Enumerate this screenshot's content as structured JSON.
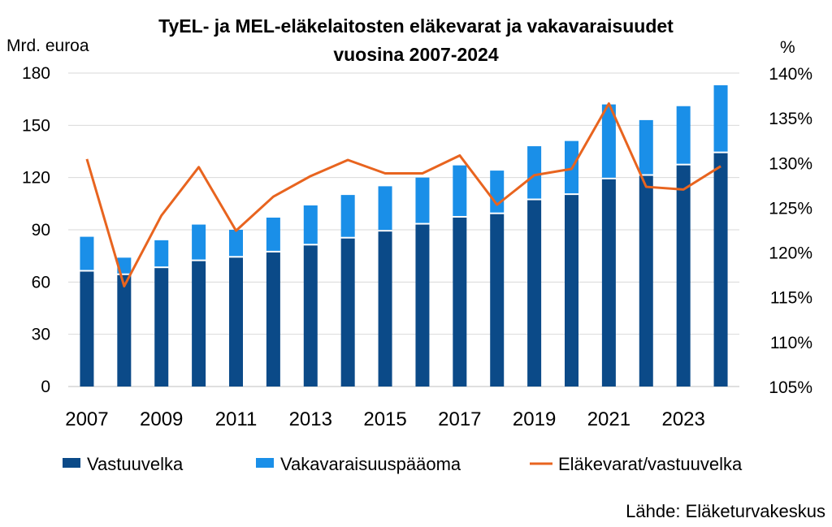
{
  "chart_data": {
    "type": "bar",
    "stacked": true,
    "title_line1": "TyEL- ja MEL-eläkelaitosten eläkevarat ja vakavaraisuudet",
    "title_line2": "vuosina 2007-2024",
    "ylabel_left": "Mrd. euroa",
    "ylabel_right": "%",
    "ylim_left": [
      0,
      180
    ],
    "ylim_right": [
      105,
      140
    ],
    "yticks_left": [
      "0",
      "30",
      "60",
      "90",
      "120",
      "150",
      "180"
    ],
    "yticks_right": [
      "105%",
      "110%",
      "115%",
      "120%",
      "125%",
      "130%",
      "135%",
      "140%"
    ],
    "categories": [
      "2007",
      "2008",
      "2009",
      "2010",
      "2011",
      "2012",
      "2013",
      "2014",
      "2015",
      "2016",
      "2017",
      "2018",
      "2019",
      "2020",
      "2021",
      "2022",
      "2023",
      "2024"
    ],
    "x_tick_labels": [
      "2007",
      "2009",
      "2011",
      "2013",
      "2015",
      "2017",
      "2019",
      "2021",
      "2023"
    ],
    "series": [
      {
        "name": "Vastuuvelka",
        "kind": "bar",
        "color": "#0b4a88",
        "values": [
          66,
          64,
          68,
          72,
          74,
          77,
          81,
          85,
          89,
          93,
          97,
          99,
          107,
          110,
          119,
          121,
          127,
          134
        ]
      },
      {
        "name": "Vakavaraisuuspääoma",
        "kind": "bar",
        "color": "#1a8fe8",
        "values": [
          20,
          10,
          16,
          21,
          16,
          20,
          23,
          25,
          26,
          27,
          30,
          25,
          31,
          31,
          43,
          32,
          34,
          39
        ]
      },
      {
        "name": "Eläkevarat/vastuuvelka",
        "kind": "line",
        "axis": "right",
        "color": "#e8641f",
        "values": [
          130.4,
          116.2,
          124.1,
          129.5,
          122.4,
          126.2,
          128.5,
          130.3,
          128.8,
          128.8,
          130.8,
          125.3,
          128.6,
          129.3,
          136.6,
          127.3,
          127.0,
          129.6
        ]
      }
    ],
    "grid": true,
    "legend": "bottom"
  },
  "source_text": "Lähde: Eläketurvakeskus"
}
